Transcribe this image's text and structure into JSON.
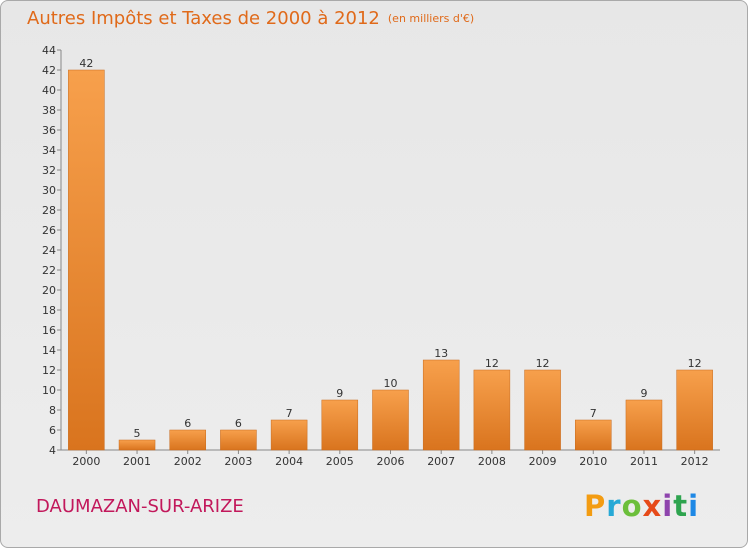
{
  "chart_data": {
    "type": "bar",
    "title": "Autres Impôts et Taxes de 2000 à 2012",
    "unit": "(en milliers d'€)",
    "categories": [
      "2000",
      "2001",
      "2002",
      "2003",
      "2004",
      "2005",
      "2006",
      "2007",
      "2008",
      "2009",
      "2010",
      "2011",
      "2012"
    ],
    "values": [
      42,
      5,
      6,
      6,
      7,
      9,
      10,
      13,
      12,
      12,
      7,
      9,
      12
    ],
    "ylim": [
      4,
      44
    ],
    "yticks": [
      4,
      6,
      8,
      10,
      12,
      14,
      16,
      18,
      20,
      22,
      24,
      26,
      28,
      30,
      32,
      34,
      36,
      38,
      40,
      42,
      44
    ],
    "grid": false,
    "bar_color_light": "#f7a04c",
    "bar_color_dark": "#d9741e"
  },
  "commune": "DAUMAZAN-SUR-ARIZE",
  "logo": {
    "p": "P",
    "r": "r",
    "o": "o",
    "x": "x",
    "i1": "i",
    "t": "t",
    "i2": "i"
  }
}
